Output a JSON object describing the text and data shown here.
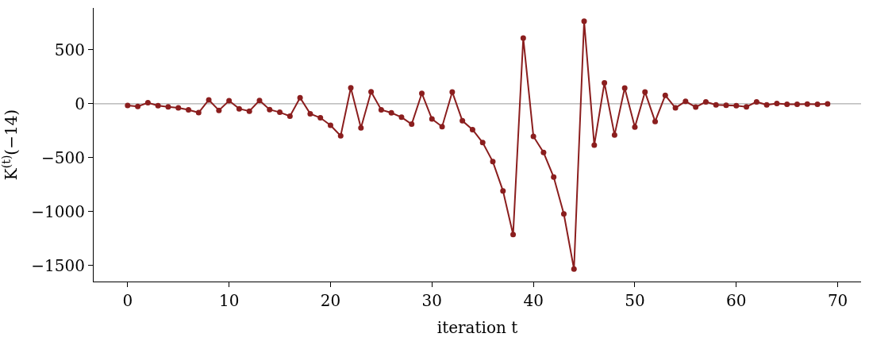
{
  "chart_data": {
    "type": "line",
    "xlabel": "iteration t",
    "ylabel": "K$^{(t)}$(−14)",
    "x": [
      0,
      1,
      2,
      3,
      4,
      5,
      6,
      7,
      8,
      9,
      10,
      11,
      12,
      13,
      14,
      15,
      16,
      17,
      18,
      19,
      20,
      21,
      22,
      23,
      24,
      25,
      26,
      27,
      28,
      29,
      30,
      31,
      32,
      33,
      34,
      35,
      36,
      37,
      38,
      39,
      40,
      41,
      42,
      43,
      44,
      45,
      46,
      47,
      48,
      49,
      50,
      51,
      52,
      53,
      54,
      55,
      56,
      57,
      58,
      59,
      60,
      61,
      62,
      63,
      64,
      65,
      66,
      67,
      68,
      69
    ],
    "series": [
      {
        "color": "#8b1e1e",
        "values": [
          -15,
          -25,
          10,
          -18,
          -28,
          -38,
          -56,
          -82,
          36,
          -61,
          28,
          -46,
          -69,
          31,
          -54,
          -79,
          -115,
          56,
          -92,
          -130,
          -200,
          -297,
          148,
          -224,
          112,
          -56,
          -84,
          -125,
          -189,
          97,
          -141,
          -212,
          110,
          -158,
          -240,
          -360,
          -537,
          -808,
          -1214,
          611,
          -302,
          -452,
          -680,
          -1023,
          -1534,
          767,
          -383,
          194,
          -289,
          146,
          -217,
          110,
          -164,
          79,
          -38,
          23,
          -31,
          18,
          -10,
          -13,
          -18,
          -28,
          18,
          -10,
          3,
          -5,
          -5,
          -3,
          -5,
          0
        ]
      }
    ],
    "xlim": [
      -3.35,
      72.3
    ],
    "ylim": [
      -1650,
      890
    ],
    "xticks": [
      0,
      10,
      20,
      30,
      40,
      50,
      60,
      70
    ],
    "yticks": [
      -1500,
      -1000,
      -500,
      0,
      500
    ],
    "ref_lines": [
      {
        "axis": "y",
        "value": 0,
        "color": "#999999"
      }
    ],
    "marker": "circle",
    "line_style": "solid",
    "grid": false
  }
}
